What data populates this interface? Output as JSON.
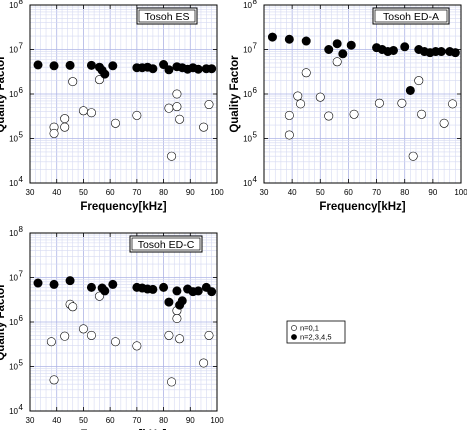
{
  "chart_data": [
    {
      "type": "scatter",
      "title": "Tosoh ES",
      "xlabel": "Frequency[kHz]",
      "ylabel": "Quality Factor",
      "xlim": [
        30,
        100
      ],
      "ylim": [
        10000,
        100000000
      ],
      "yscale": "log",
      "xticks": [
        "30",
        "40",
        "50",
        "60",
        "70",
        "80",
        "90",
        "100"
      ],
      "yticks": [
        "10",
        "10",
        "10",
        "10",
        "10"
      ],
      "yticks_exp": [
        "4",
        "5",
        "6",
        "7",
        "8"
      ],
      "series": [
        {
          "name": "n=0,1",
          "marker": "open-circle",
          "points": [
            [
              39,
              180000
            ],
            [
              39,
              130000
            ],
            [
              43,
              280000
            ],
            [
              43,
              180000
            ],
            [
              46,
              1900000
            ],
            [
              50,
              420000
            ],
            [
              53,
              380000
            ],
            [
              56,
              2100000
            ],
            [
              62,
              220000
            ],
            [
              70,
              330000
            ],
            [
              82,
              480000
            ],
            [
              83,
              40000
            ],
            [
              85,
              1000000
            ],
            [
              85,
              520000
            ],
            [
              86,
              270000
            ],
            [
              95,
              180000
            ],
            [
              97,
              580000
            ]
          ]
        },
        {
          "name": "n=2,3,4,5",
          "marker": "filled-circle",
          "points": [
            [
              33,
              4500000
            ],
            [
              39,
              4300000
            ],
            [
              45,
              4400000
            ],
            [
              53,
              4400000
            ],
            [
              56,
              4000000
            ],
            [
              57,
              3400000
            ],
            [
              58,
              2800000
            ],
            [
              61,
              4300000
            ],
            [
              70,
              3900000
            ],
            [
              72,
              3900000
            ],
            [
              74,
              4000000
            ],
            [
              76,
              3700000
            ],
            [
              80,
              4600000
            ],
            [
              82,
              3500000
            ],
            [
              85,
              4100000
            ],
            [
              87,
              3900000
            ],
            [
              89,
              3600000
            ],
            [
              91,
              3900000
            ],
            [
              93,
              3600000
            ],
            [
              96,
              3700000
            ],
            [
              98,
              3700000
            ]
          ]
        }
      ]
    },
    {
      "type": "scatter",
      "title": "Tosoh ED-A",
      "xlabel": "Frequency[kHz]",
      "ylabel": "Quality Factor",
      "xlim": [
        30,
        100
      ],
      "ylim": [
        10000,
        100000000
      ],
      "yscale": "log",
      "xticks": [
        "30",
        "40",
        "50",
        "60",
        "70",
        "80",
        "90",
        "100"
      ],
      "yticks": [
        "10",
        "10",
        "10",
        "10",
        "10"
      ],
      "yticks_exp": [
        "4",
        "5",
        "6",
        "7",
        "8"
      ],
      "series": [
        {
          "name": "n=0,1",
          "marker": "open-circle",
          "points": [
            [
              39,
              330000
            ],
            [
              39,
              120000
            ],
            [
              42,
              900000
            ],
            [
              43,
              600000
            ],
            [
              45,
              3000000
            ],
            [
              50,
              850000
            ],
            [
              53,
              320000
            ],
            [
              56,
              5300000
            ],
            [
              62,
              350000
            ],
            [
              71,
              620000
            ],
            [
              79,
              620000
            ],
            [
              83,
              40000
            ],
            [
              85,
              2000000
            ],
            [
              86,
              350000
            ],
            [
              94,
              220000
            ],
            [
              97,
              600000
            ]
          ]
        },
        {
          "name": "n=2,3,4,5",
          "marker": "filled-circle",
          "points": [
            [
              33,
              19000000
            ],
            [
              39,
              17000000
            ],
            [
              45,
              15500000
            ],
            [
              53,
              10000000
            ],
            [
              56,
              13500000
            ],
            [
              58,
              8000000
            ],
            [
              61,
              12500000
            ],
            [
              70,
              11000000
            ],
            [
              72,
              10000000
            ],
            [
              74,
              9000000
            ],
            [
              76,
              9500000
            ],
            [
              80,
              11500000
            ],
            [
              82,
              1200000
            ],
            [
              85,
              10000000
            ],
            [
              87,
              9000000
            ],
            [
              89,
              8500000
            ],
            [
              91,
              9000000
            ],
            [
              93,
              9000000
            ],
            [
              96,
              9000000
            ],
            [
              98,
              8500000
            ]
          ]
        }
      ]
    },
    {
      "type": "scatter",
      "title": "Tosoh ED-C",
      "xlabel": "Frequency[kHz]",
      "ylabel": "Quality Factor",
      "xlim": [
        30,
        100
      ],
      "ylim": [
        10000,
        100000000
      ],
      "yscale": "log",
      "xticks": [
        "30",
        "40",
        "50",
        "60",
        "70",
        "80",
        "90",
        "100"
      ],
      "yticks": [
        "10",
        "10",
        "10",
        "10",
        "10"
      ],
      "yticks_exp": [
        "4",
        "5",
        "6",
        "7",
        "8"
      ],
      "series": [
        {
          "name": "n=0,1",
          "marker": "open-circle",
          "points": [
            [
              38,
              360000
            ],
            [
              39,
              50000
            ],
            [
              43,
              480000
            ],
            [
              45,
              2500000
            ],
            [
              46,
              2200000
            ],
            [
              50,
              700000
            ],
            [
              53,
              500000
            ],
            [
              56,
              3800000
            ],
            [
              62,
              360000
            ],
            [
              70,
              290000
            ],
            [
              82,
              500000
            ],
            [
              83,
              45000
            ],
            [
              85,
              1800000
            ],
            [
              85,
              1200000
            ],
            [
              86,
              420000
            ],
            [
              95,
              120000
            ],
            [
              97,
              500000
            ]
          ]
        },
        {
          "name": "n=2,3,4,5",
          "marker": "filled-circle",
          "points": [
            [
              33,
              7500000
            ],
            [
              39,
              7000000
            ],
            [
              45,
              8500000
            ],
            [
              53,
              6000000
            ],
            [
              57,
              5800000
            ],
            [
              58,
              5000000
            ],
            [
              61,
              7000000
            ],
            [
              70,
              6000000
            ],
            [
              72,
              5800000
            ],
            [
              74,
              5500000
            ],
            [
              76,
              5400000
            ],
            [
              80,
              6000000
            ],
            [
              82,
              2800000
            ],
            [
              85,
              5000000
            ],
            [
              86,
              2400000
            ],
            [
              87,
              3000000
            ],
            [
              89,
              5500000
            ],
            [
              91,
              4800000
            ],
            [
              93,
              5000000
            ],
            [
              96,
              6000000
            ],
            [
              98,
              4800000
            ]
          ]
        }
      ]
    }
  ],
  "legend": {
    "items": [
      {
        "label": "n=0,1",
        "marker": "open-circle"
      },
      {
        "label": "n=2,3,4,5",
        "marker": "filled-circle"
      }
    ]
  }
}
